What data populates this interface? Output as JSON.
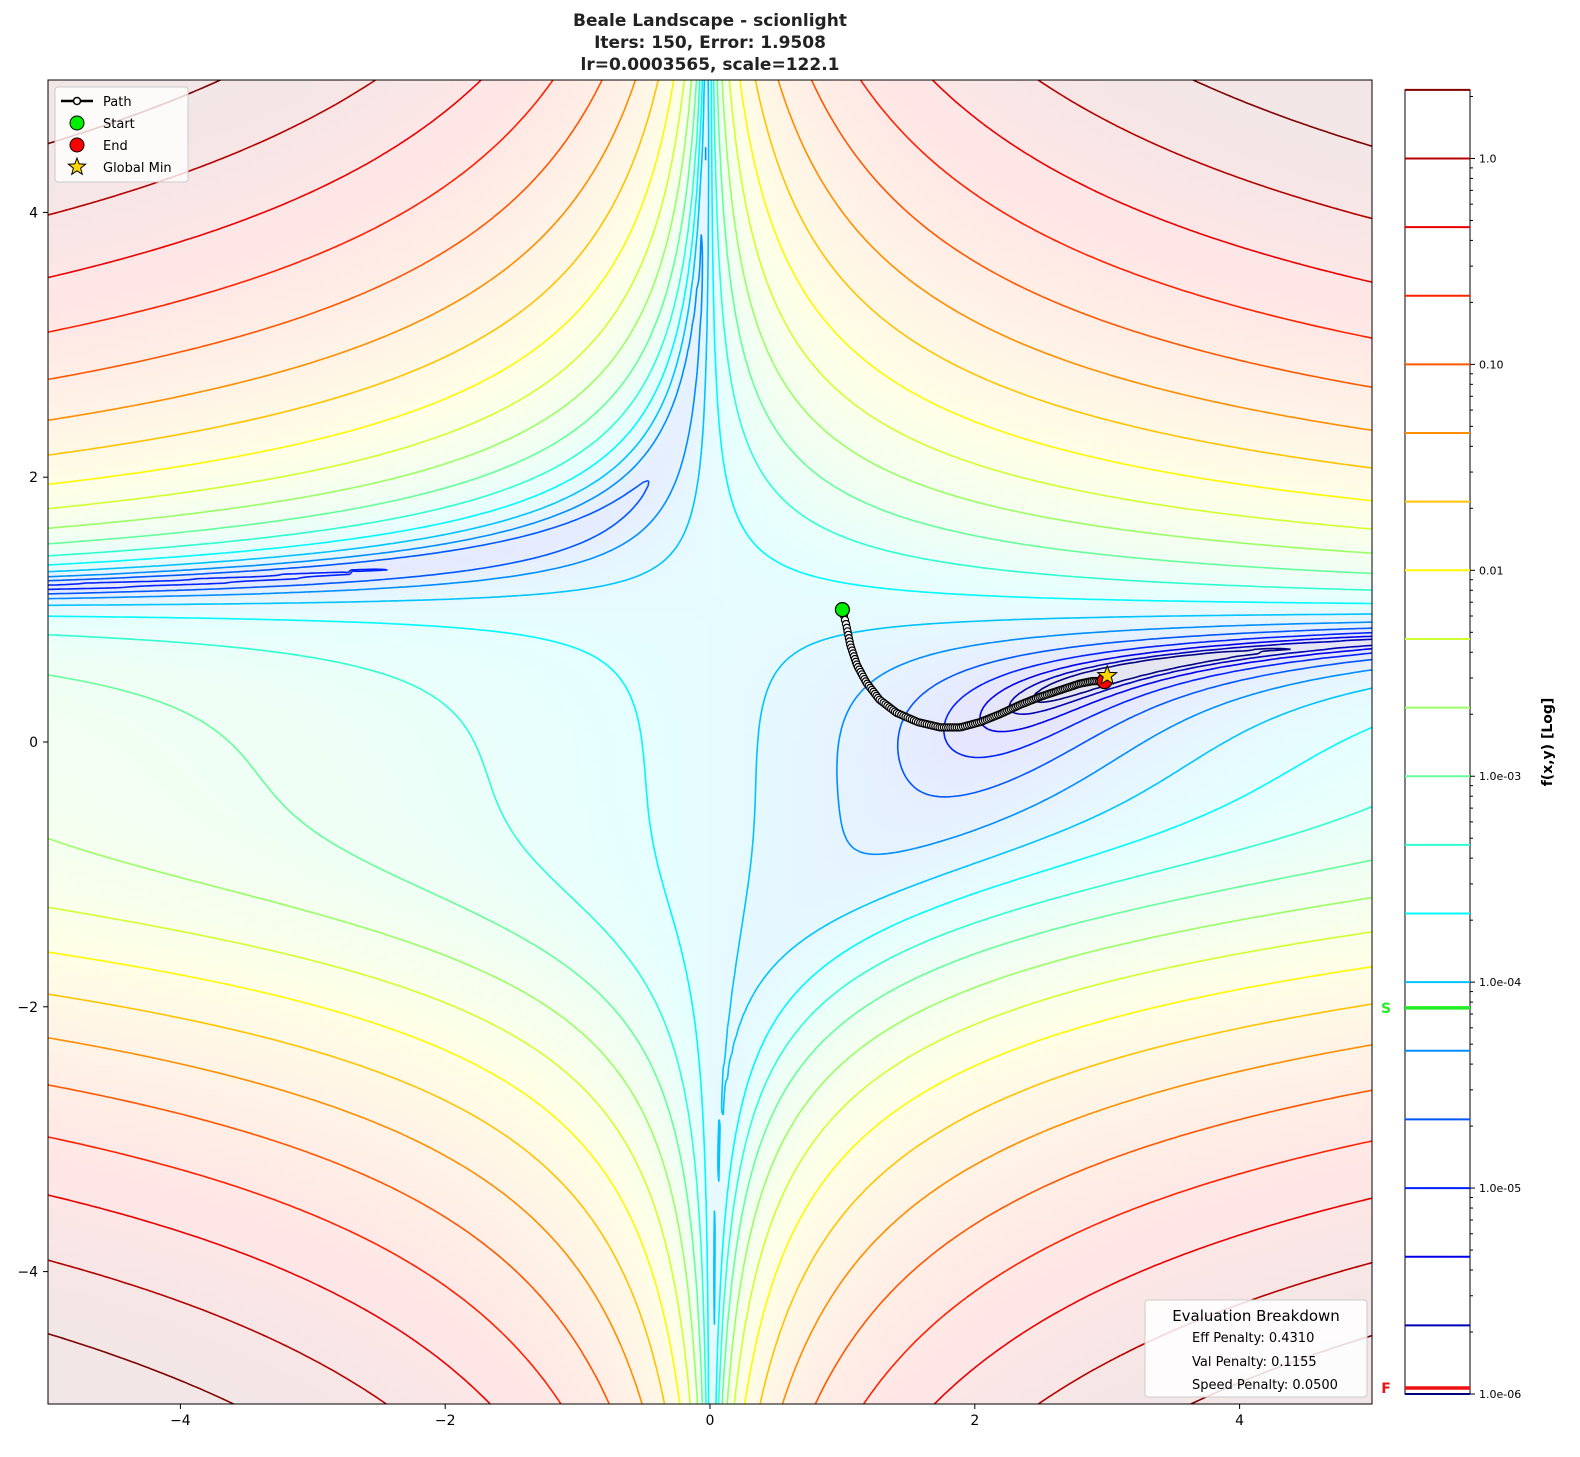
{
  "chart_data": {
    "type": "contour",
    "title": [
      "Beale Landscape - scionlight",
      "Iters: 150, Error: 1.9508",
      "lr=0.0003565, scale=122.1"
    ],
    "xlim": [
      -5,
      5
    ],
    "ylim": [
      -5,
      5
    ],
    "xticks": [
      {
        "value": -4,
        "label": "−4"
      },
      {
        "value": -2,
        "label": "−2"
      },
      {
        "value": 0,
        "label": "0"
      },
      {
        "value": 2,
        "label": "2"
      },
      {
        "value": 4,
        "label": "4"
      }
    ],
    "yticks": [
      {
        "value": -4,
        "label": "−4"
      },
      {
        "value": -2,
        "label": "−2"
      },
      {
        "value": 0,
        "label": "0"
      },
      {
        "value": 2,
        "label": "2"
      },
      {
        "value": 4,
        "label": "4"
      }
    ],
    "function": "Beale",
    "colormap": "jet",
    "colorbar": {
      "label": "f(x,y) [Log]",
      "scale": "log",
      "range": [
        1e-06,
        2.15
      ],
      "levels_per_decade": 3,
      "level_count": 20,
      "ticks": [
        {
          "value": 1.0,
          "label": "1.0"
        },
        {
          "value": 0.1,
          "label": "0.10"
        },
        {
          "value": 0.01,
          "label": "0.01"
        },
        {
          "value": 0.001,
          "label": "1.0e-03"
        },
        {
          "value": 0.0001,
          "label": "1.0e-04"
        },
        {
          "value": 1e-05,
          "label": "1.0e-05"
        },
        {
          "value": 1e-06,
          "label": "1.0e-06"
        }
      ],
      "markers": [
        {
          "label": "S",
          "value": 7.5e-05,
          "color": "#22ee22"
        },
        {
          "label": "F",
          "value": 1.07e-06,
          "color": "#ee1111"
        }
      ]
    },
    "path": {
      "iterations": 150,
      "points": [
        [
          1.0,
          1.0
        ],
        [
          1.03,
          0.88
        ],
        [
          1.06,
          0.73
        ],
        [
          1.11,
          0.58
        ],
        [
          1.18,
          0.45
        ],
        [
          1.28,
          0.32
        ],
        [
          1.41,
          0.22
        ],
        [
          1.57,
          0.15
        ],
        [
          1.74,
          0.11
        ],
        [
          1.89,
          0.11
        ],
        [
          2.04,
          0.15
        ],
        [
          2.19,
          0.21
        ],
        [
          2.34,
          0.28
        ],
        [
          2.49,
          0.34
        ],
        [
          2.64,
          0.39
        ],
        [
          2.79,
          0.44
        ],
        [
          2.89,
          0.46
        ],
        [
          2.98,
          0.46
        ]
      ]
    },
    "start": [
      1.0,
      1.0
    ],
    "end": [
      2.98,
      0.46
    ],
    "global_min": [
      3.0,
      0.5
    ],
    "legend": {
      "position": "upper-left",
      "entries": [
        {
          "label": "Path",
          "marker": "line-circle",
          "color": "#000000"
        },
        {
          "label": "Start",
          "marker": "circle",
          "color": "#00ee00"
        },
        {
          "label": "End",
          "marker": "circle",
          "color": "#ff0000"
        },
        {
          "label": "Global Min",
          "marker": "star",
          "color": "#ffd700"
        }
      ]
    },
    "evaluation": {
      "title": "Evaluation Breakdown",
      "position": "lower-right",
      "lines": [
        "Eff Penalty: 0.4310",
        "Val Penalty: 0.1155",
        "Speed Penalty: 0.0500"
      ]
    }
  }
}
